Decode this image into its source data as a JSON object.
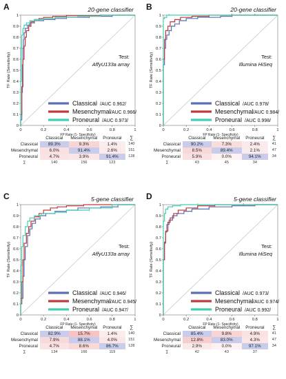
{
  "panels": [
    {
      "letter": "A",
      "classifier": "20-gene classifier",
      "test_label": "Test:",
      "platform": "AffyU133a  array",
      "axis": {
        "xlabel": "FP Rate (1- Specificity)",
        "ylabel": "TF Rate (Sensitivity)"
      },
      "legend": [
        {
          "name": "Classical",
          "auc": "/AUC 0.962/"
        },
        {
          "name": "Mesenchymal",
          "auc": "/AUC 0.966/"
        },
        {
          "name": "Proneural",
          "auc": " /AUC 0.973/"
        }
      ],
      "table": {
        "cols": [
          "Classical",
          "Mesenchymal",
          "Proneural"
        ],
        "sigma": "∑",
        "rows": [
          {
            "label": "Classical",
            "cells": [
              "89.3%",
              "9.3%",
              "1.4%"
            ],
            "total": "140"
          },
          {
            "label": "Mesenchymal",
            "cells": [
              "6.0%",
              "91.4%",
              "2.6%"
            ],
            "total": "151"
          },
          {
            "label": "Proneural",
            "cells": [
              "4.7%",
              "3.9%",
              "91.4%"
            ],
            "total": "128"
          }
        ],
        "col_totals": [
          "140",
          "156",
          "123"
        ]
      }
    },
    {
      "letter": "B",
      "classifier": "20-gene classifier",
      "test_label": "Test:",
      "platform": "Illumina HiSeq",
      "axis": {
        "xlabel": "FP Rate (1- Specificity)",
        "ylabel": "TF Rate (Sensitivity)"
      },
      "legend": [
        {
          "name": "Classical",
          "auc": "/AUC 0.978/"
        },
        {
          "name": "Mesenchymal",
          "auc": "/AUC 0.984/"
        },
        {
          "name": "Proneural",
          "auc": "/AUC 0.998/"
        }
      ],
      "table": {
        "cols": [
          "Classical",
          "Mesenchymal",
          "Proneural"
        ],
        "sigma": "∑",
        "rows": [
          {
            "label": "Classical",
            "cells": [
              "90.2%",
              "7.3%",
              "2.4%"
            ],
            "total": "41"
          },
          {
            "label": "Mesenchymal",
            "cells": [
              "8.5%",
              "89.4%",
              "2.1%"
            ],
            "total": "47"
          },
          {
            "label": "Proneural",
            "cells": [
              "5.9%",
              "0.0%",
              "94.1%"
            ],
            "total": "34"
          }
        ],
        "col_totals": [
          "43",
          "45",
          "34"
        ]
      }
    },
    {
      "letter": "C",
      "classifier": "5-gene classifier",
      "test_label": "Test:",
      "platform": "AffyU133a  array",
      "axis": {
        "xlabel": "FP Rate (1- Specificity)",
        "ylabel": "TF Rate (Sensitivity)"
      },
      "legend": [
        {
          "name": "Classical",
          "auc": "/AUC 0.946/"
        },
        {
          "name": "Mesenchymal",
          "auc": "/AUC 0.945/"
        },
        {
          "name": "Proneural",
          "auc": "/AUC 0.947/"
        }
      ],
      "table": {
        "cols": [
          "Classical",
          "Mesenchymal",
          "Proneural"
        ],
        "sigma": "∑",
        "rows": [
          {
            "label": "Classical",
            "cells": [
              "82.9%",
              "15.7%",
              "1.4%"
            ],
            "total": "140"
          },
          {
            "label": "Mesenchymal",
            "cells": [
              "7.9%",
              "88.1%",
              "4.0%"
            ],
            "total": "151"
          },
          {
            "label": "Proneural",
            "cells": [
              "4.7%",
              "8.6%",
              "86.7%"
            ],
            "total": "128"
          }
        ],
        "col_totals": [
          "134",
          "166",
          "119"
        ]
      }
    },
    {
      "letter": "D",
      "classifier": "5-gene classifier",
      "test_label": "Test:",
      "platform": "Illumina HiSeq",
      "axis": {
        "xlabel": "FP Rate (1- Specificity)",
        "ylabel": "TF Rate (Sensitivity)"
      },
      "legend": [
        {
          "name": "Classical",
          "auc": "/AUC 0.973/"
        },
        {
          "name": "Mesenchymal",
          "auc": "/AUC 0.974/"
        },
        {
          "name": "Proneural",
          "auc": "/AUC 0.992/"
        }
      ],
      "table": {
        "cols": [
          "Classical",
          "Mesenchymal",
          "Proneural"
        ],
        "sigma": "∑",
        "rows": [
          {
            "label": "Classical",
            "cells": [
              "85.4%",
              "9.8%",
              "4.9%"
            ],
            "total": "41"
          },
          {
            "label": "Mesenchymal",
            "cells": [
              "12.8%",
              "83.0%",
              "4.3%"
            ],
            "total": "47"
          },
          {
            "label": "Proneural",
            "cells": [
              "2.9%",
              "0.0%",
              "97.1%"
            ],
            "total": "34"
          }
        ],
        "col_totals": [
          "42",
          "43",
          "37"
        ]
      }
    }
  ],
  "colors": {
    "Classical": "#5b6fb5",
    "Mesenchymal": "#c0393b",
    "Proneural": "#3fd1b0",
    "diag_bg": "#c9cdeb",
    "off_bg": "#f6caca"
  },
  "chart_data": [
    {
      "type": "line",
      "title": "20-gene classifier",
      "xlabel": "FP Rate (1- Specificity)",
      "ylabel": "TF Rate (Sensitivity)",
      "xlim": [
        0,
        1
      ],
      "ylim": [
        0,
        1
      ],
      "x_ticks": [
        0,
        0.2,
        0.4,
        0.6,
        0.8,
        1
      ],
      "y_ticks": [
        0,
        0.1,
        0.2,
        0.3,
        0.4,
        0.5,
        0.6,
        0.7,
        0.8,
        0.9,
        1
      ],
      "series": [
        {
          "name": "Classical",
          "points": [
            [
              0,
              0
            ],
            [
              0.01,
              0.05
            ],
            [
              0.015,
              0.3
            ],
            [
              0.02,
              0.55
            ],
            [
              0.025,
              0.7
            ],
            [
              0.03,
              0.78
            ],
            [
              0.04,
              0.84
            ],
            [
              0.06,
              0.88
            ],
            [
              0.08,
              0.91
            ],
            [
              0.12,
              0.93
            ],
            [
              0.2,
              0.95
            ],
            [
              0.3,
              0.96
            ],
            [
              0.4,
              0.97
            ],
            [
              0.6,
              0.98
            ],
            [
              0.8,
              0.99
            ],
            [
              1,
              1
            ]
          ]
        },
        {
          "name": "Mesenchymal",
          "points": [
            [
              0,
              0
            ],
            [
              0.01,
              0.1
            ],
            [
              0.02,
              0.35
            ],
            [
              0.03,
              0.6
            ],
            [
              0.04,
              0.72
            ],
            [
              0.05,
              0.8
            ],
            [
              0.07,
              0.86
            ],
            [
              0.09,
              0.9
            ],
            [
              0.12,
              0.94
            ],
            [
              0.16,
              0.96
            ],
            [
              0.2,
              0.97
            ],
            [
              0.28,
              0.98
            ],
            [
              0.4,
              0.99
            ],
            [
              0.7,
              0.995
            ],
            [
              1,
              1
            ]
          ]
        },
        {
          "name": "Proneural",
          "points": [
            [
              0,
              0
            ],
            [
              0.005,
              0.4
            ],
            [
              0.01,
              0.7
            ],
            [
              0.02,
              0.82
            ],
            [
              0.03,
              0.88
            ],
            [
              0.05,
              0.91
            ],
            [
              0.08,
              0.93
            ],
            [
              0.12,
              0.95
            ],
            [
              0.2,
              0.96
            ],
            [
              0.3,
              0.97
            ],
            [
              0.5,
              0.98
            ],
            [
              0.7,
              0.99
            ],
            [
              1,
              1
            ]
          ]
        }
      ]
    },
    {
      "type": "line",
      "title": "20-gene classifier",
      "xlabel": "FP Rate (1- Specificity)",
      "ylabel": "TF Rate (Sensitivity)",
      "xlim": [
        0,
        1
      ],
      "ylim": [
        0,
        1
      ],
      "x_ticks": [
        0,
        0.2,
        0.4,
        0.6,
        0.8,
        1
      ],
      "y_ticks": [
        0,
        0.1,
        0.2,
        0.3,
        0.4,
        0.5,
        0.6,
        0.7,
        0.8,
        0.9,
        1
      ],
      "series": [
        {
          "name": "Classical",
          "points": [
            [
              0,
              0
            ],
            [
              0,
              0.45
            ],
            [
              0.01,
              0.55
            ],
            [
              0.02,
              0.7
            ],
            [
              0.03,
              0.78
            ],
            [
              0.05,
              0.82
            ],
            [
              0.07,
              0.86
            ],
            [
              0.1,
              0.9
            ],
            [
              0.14,
              0.92
            ],
            [
              0.2,
              0.95
            ],
            [
              0.3,
              0.97
            ],
            [
              0.5,
              0.98
            ],
            [
              0.6,
              0.99
            ],
            [
              0.8,
              1
            ],
            [
              1,
              1
            ]
          ]
        },
        {
          "name": "Mesenchymal",
          "points": [
            [
              0,
              0
            ],
            [
              0,
              0.35
            ],
            [
              0.01,
              0.6
            ],
            [
              0.02,
              0.78
            ],
            [
              0.04,
              0.86
            ],
            [
              0.06,
              0.9
            ],
            [
              0.1,
              0.94
            ],
            [
              0.15,
              0.96
            ],
            [
              0.25,
              0.98
            ],
            [
              0.4,
              0.99
            ],
            [
              0.6,
              1
            ],
            [
              1,
              1
            ]
          ]
        },
        {
          "name": "Proneural",
          "points": [
            [
              0,
              0
            ],
            [
              0,
              0.94
            ],
            [
              0.01,
              0.97
            ],
            [
              0.03,
              0.98
            ],
            [
              0.05,
              1
            ],
            [
              1,
              1
            ]
          ]
        }
      ]
    },
    {
      "type": "line",
      "title": "5-gene classifier",
      "xlabel": "FP Rate (1- Specificity)",
      "ylabel": "TF Rate (Sensitivity)",
      "xlim": [
        0,
        1
      ],
      "ylim": [
        0,
        1
      ],
      "x_ticks": [
        0,
        0.2,
        0.4,
        0.6,
        0.8,
        1
      ],
      "y_ticks": [
        0,
        0.1,
        0.2,
        0.3,
        0.4,
        0.5,
        0.6,
        0.7,
        0.8,
        0.9,
        1
      ],
      "series": [
        {
          "name": "Classical",
          "points": [
            [
              0,
              0
            ],
            [
              0.02,
              0.15
            ],
            [
              0.03,
              0.35
            ],
            [
              0.04,
              0.5
            ],
            [
              0.06,
              0.62
            ],
            [
              0.08,
              0.72
            ],
            [
              0.1,
              0.78
            ],
            [
              0.13,
              0.83
            ],
            [
              0.17,
              0.87
            ],
            [
              0.22,
              0.9
            ],
            [
              0.3,
              0.92
            ],
            [
              0.4,
              0.94
            ],
            [
              0.5,
              0.95
            ],
            [
              0.7,
              0.97
            ],
            [
              0.85,
              0.98
            ],
            [
              1,
              1
            ]
          ]
        },
        {
          "name": "Mesenchymal",
          "points": [
            [
              0,
              0
            ],
            [
              0.01,
              0.1
            ],
            [
              0.02,
              0.3
            ],
            [
              0.03,
              0.5
            ],
            [
              0.05,
              0.65
            ],
            [
              0.07,
              0.74
            ],
            [
              0.09,
              0.8
            ],
            [
              0.12,
              0.85
            ],
            [
              0.16,
              0.89
            ],
            [
              0.2,
              0.92
            ],
            [
              0.26,
              0.95
            ],
            [
              0.32,
              0.97
            ],
            [
              0.4,
              0.98
            ],
            [
              0.55,
              0.99
            ],
            [
              1,
              1
            ]
          ]
        },
        {
          "name": "Proneural",
          "points": [
            [
              0,
              0
            ],
            [
              0.005,
              0.2
            ],
            [
              0.01,
              0.45
            ],
            [
              0.02,
              0.62
            ],
            [
              0.04,
              0.72
            ],
            [
              0.06,
              0.8
            ],
            [
              0.08,
              0.85
            ],
            [
              0.12,
              0.88
            ],
            [
              0.18,
              0.9
            ],
            [
              0.3,
              0.92
            ],
            [
              0.4,
              0.93
            ],
            [
              0.6,
              0.95
            ],
            [
              0.8,
              0.97
            ],
            [
              1,
              1
            ]
          ]
        }
      ]
    },
    {
      "type": "line",
      "title": "5-gene classifier",
      "xlabel": "FP Rate (1- Specificity)",
      "ylabel": "TF Rate (Sensitivity)",
      "xlim": [
        0,
        1
      ],
      "ylim": [
        0,
        1
      ],
      "x_ticks": [
        0,
        0.2,
        0.4,
        0.6,
        0.8,
        1
      ],
      "y_ticks": [
        0,
        0.1,
        0.2,
        0.3,
        0.4,
        0.5,
        0.6,
        0.7,
        0.8,
        0.9,
        1
      ],
      "series": [
        {
          "name": "Classical",
          "points": [
            [
              0,
              0
            ],
            [
              0,
              0.35
            ],
            [
              0.01,
              0.5
            ],
            [
              0.02,
              0.65
            ],
            [
              0.03,
              0.75
            ],
            [
              0.05,
              0.82
            ],
            [
              0.08,
              0.86
            ],
            [
              0.12,
              0.9
            ],
            [
              0.18,
              0.92
            ],
            [
              0.25,
              0.94
            ],
            [
              0.4,
              0.96
            ],
            [
              0.6,
              0.98
            ],
            [
              0.8,
              0.99
            ],
            [
              1,
              1
            ]
          ]
        },
        {
          "name": "Mesenchymal",
          "points": [
            [
              0,
              0
            ],
            [
              0,
              0.3
            ],
            [
              0.01,
              0.5
            ],
            [
              0.02,
              0.66
            ],
            [
              0.04,
              0.76
            ],
            [
              0.06,
              0.84
            ],
            [
              0.09,
              0.88
            ],
            [
              0.13,
              0.92
            ],
            [
              0.2,
              0.95
            ],
            [
              0.3,
              0.97
            ],
            [
              0.45,
              0.99
            ],
            [
              0.7,
              1
            ],
            [
              1,
              1
            ]
          ]
        },
        {
          "name": "Proneural",
          "points": [
            [
              0,
              0
            ],
            [
              0,
              0.7
            ],
            [
              0.01,
              0.85
            ],
            [
              0.02,
              0.92
            ],
            [
              0.04,
              0.96
            ],
            [
              0.08,
              0.98
            ],
            [
              0.15,
              0.99
            ],
            [
              0.3,
              1
            ],
            [
              1,
              1
            ]
          ]
        }
      ]
    }
  ]
}
